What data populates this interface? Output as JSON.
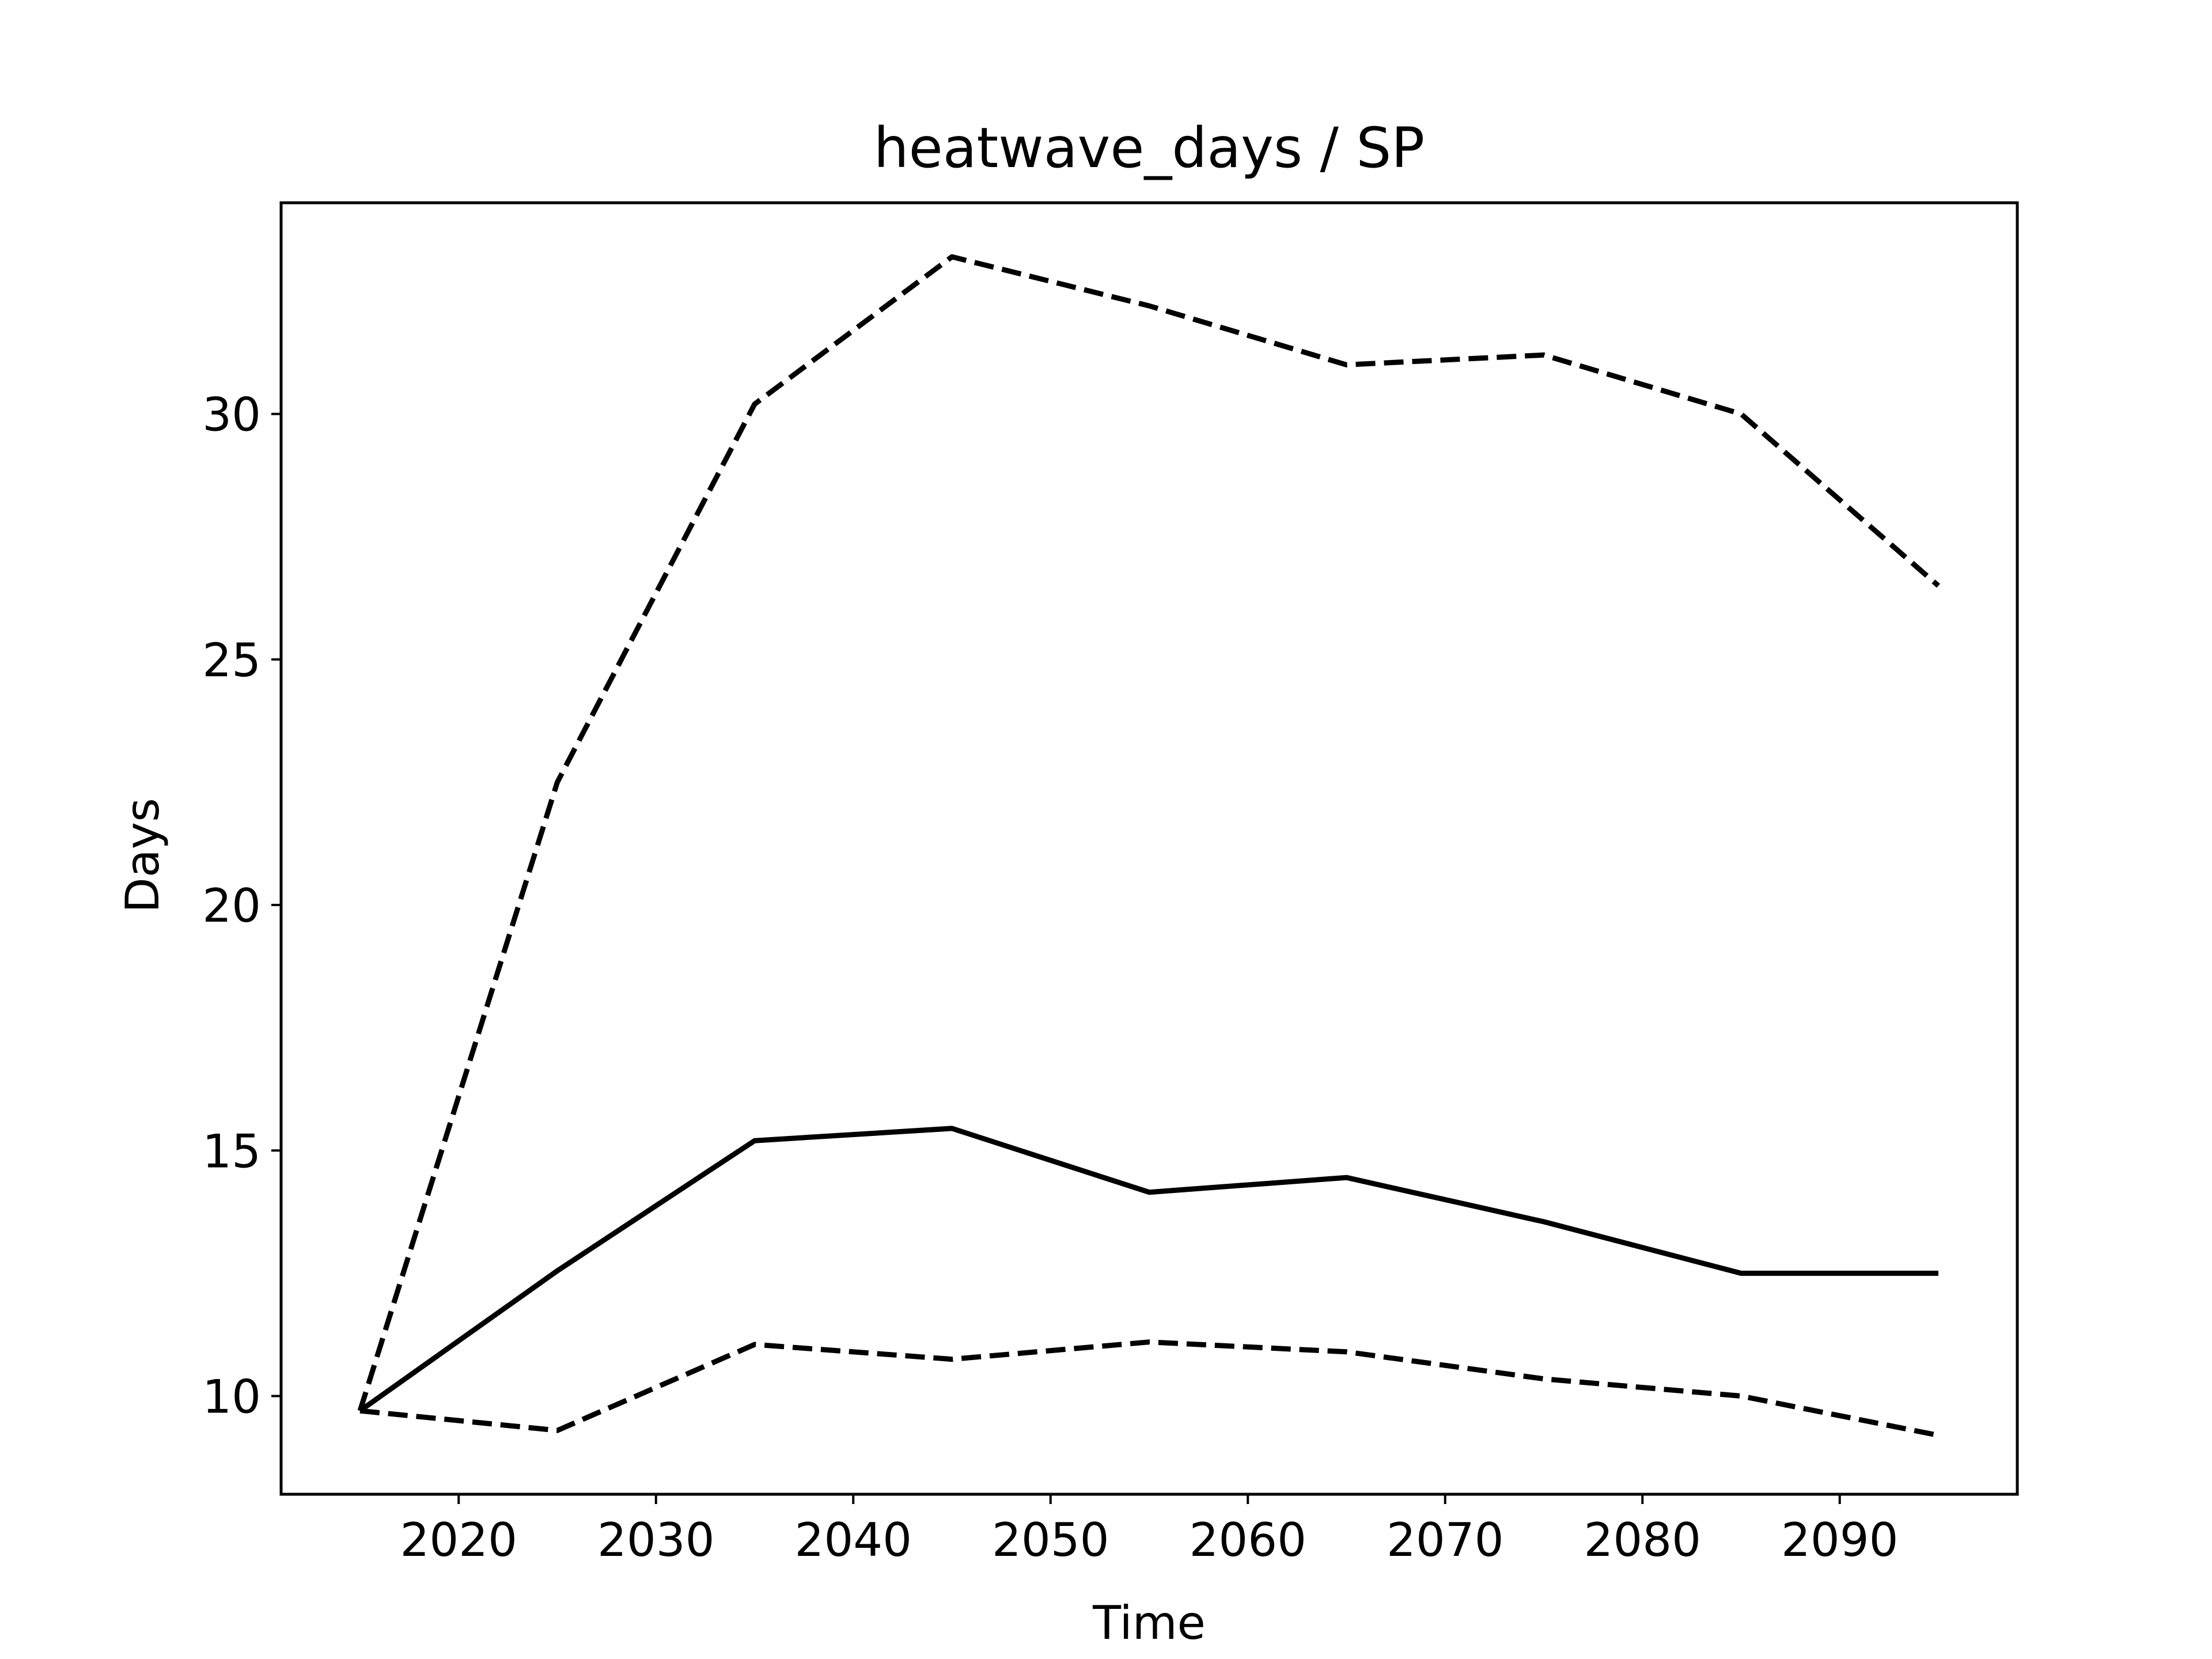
{
  "chart_data": {
    "type": "line",
    "title": "heatwave_days / SP",
    "xlabel": "Time",
    "ylabel": "Days",
    "xlim": [
      2011,
      2099
    ],
    "ylim": [
      8.0,
      34.3
    ],
    "x_ticks": [
      2020,
      2030,
      2040,
      2050,
      2060,
      2070,
      2080,
      2090
    ],
    "y_ticks": [
      10,
      15,
      20,
      25,
      30
    ],
    "grid": false,
    "legend": "none",
    "x": [
      2015,
      2025,
      2035,
      2045,
      2055,
      2065,
      2075,
      2085,
      2095
    ],
    "series": [
      {
        "style": "solid",
        "color": "#000000",
        "values": [
          9.7,
          12.55,
          15.2,
          15.45,
          14.15,
          14.45,
          13.55,
          12.5,
          12.5
        ]
      },
      {
        "style": "dashed",
        "color": "#000000",
        "values": [
          9.7,
          22.5,
          30.2,
          33.2,
          32.2,
          31.0,
          31.2,
          30.0,
          26.5
        ]
      },
      {
        "style": "dashed",
        "color": "#000000",
        "values": [
          9.7,
          9.3,
          11.05,
          10.75,
          11.1,
          10.9,
          10.35,
          10.0,
          9.2
        ]
      }
    ]
  }
}
